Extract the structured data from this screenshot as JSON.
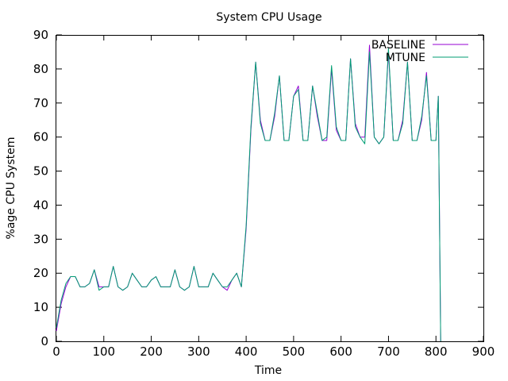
{
  "chart_data": {
    "type": "line",
    "title": "System CPU Usage",
    "xlabel": "Time",
    "ylabel": "%age CPU System",
    "xlim": [
      0,
      900
    ],
    "ylim": [
      0,
      90
    ],
    "xticks": [
      0,
      100,
      200,
      300,
      400,
      500,
      600,
      700,
      800,
      900
    ],
    "yticks": [
      0,
      10,
      20,
      30,
      40,
      50,
      60,
      70,
      80,
      90
    ],
    "grid": false,
    "legend_position": "top-right",
    "series": [
      {
        "name": "BASELINE",
        "color": "#9400d3",
        "x": [
          0,
          10,
          20,
          30,
          40,
          50,
          60,
          70,
          80,
          90,
          100,
          110,
          120,
          130,
          140,
          150,
          160,
          170,
          180,
          190,
          200,
          210,
          220,
          230,
          240,
          250,
          260,
          270,
          280,
          290,
          300,
          310,
          320,
          330,
          340,
          350,
          360,
          370,
          380,
          390,
          400,
          410,
          420,
          430,
          440,
          450,
          460,
          470,
          480,
          490,
          500,
          510,
          520,
          530,
          540,
          550,
          560,
          570,
          580,
          590,
          600,
          610,
          620,
          630,
          640,
          650,
          660,
          670,
          680,
          690,
          700,
          710,
          720,
          730,
          740,
          750,
          760,
          770,
          780,
          790,
          800,
          805,
          810
        ],
        "values": [
          3,
          11,
          16,
          19,
          19,
          16,
          16,
          17,
          21,
          16,
          16,
          16,
          22,
          16,
          15,
          16,
          20,
          18,
          16,
          16,
          18,
          19,
          16,
          16,
          16,
          21,
          16,
          15,
          16,
          22,
          16,
          16,
          16,
          20,
          18,
          16,
          15,
          18,
          20,
          16,
          33,
          62,
          82,
          65,
          59,
          59,
          66,
          78,
          59,
          59,
          72,
          75,
          59,
          59,
          75,
          66,
          59,
          59,
          80,
          62,
          59,
          59,
          83,
          64,
          60,
          60,
          87,
          60,
          58,
          60,
          85,
          59,
          59,
          65,
          82,
          59,
          59,
          65,
          79,
          59,
          59,
          72,
          0
        ]
      },
      {
        "name": "MTUNE",
        "color": "#009e73",
        "x": [
          0,
          10,
          20,
          30,
          40,
          50,
          60,
          70,
          80,
          90,
          100,
          110,
          120,
          130,
          140,
          150,
          160,
          170,
          180,
          190,
          200,
          210,
          220,
          230,
          240,
          250,
          260,
          270,
          280,
          290,
          300,
          310,
          320,
          330,
          340,
          350,
          360,
          370,
          380,
          390,
          400,
          410,
          420,
          430,
          440,
          450,
          460,
          470,
          480,
          490,
          500,
          510,
          520,
          530,
          540,
          550,
          560,
          570,
          580,
          590,
          600,
          610,
          620,
          630,
          640,
          650,
          660,
          670,
          680,
          690,
          700,
          710,
          720,
          730,
          740,
          750,
          760,
          770,
          780,
          790,
          800,
          805,
          810
        ],
        "values": [
          4,
          12,
          17,
          19,
          19,
          16,
          16,
          17,
          21,
          15,
          16,
          16,
          22,
          16,
          15,
          16,
          20,
          18,
          16,
          16,
          18,
          19,
          16,
          16,
          16,
          21,
          16,
          15,
          16,
          22,
          16,
          16,
          16,
          20,
          18,
          16,
          16,
          18,
          20,
          16,
          34,
          63,
          82,
          64,
          59,
          59,
          67,
          78,
          59,
          59,
          72,
          74,
          59,
          59,
          75,
          67,
          59,
          60,
          81,
          63,
          59,
          59,
          83,
          63,
          60,
          58,
          85,
          60,
          58,
          60,
          86,
          59,
          59,
          64,
          82,
          59,
          59,
          66,
          78,
          59,
          59,
          72,
          0
        ]
      }
    ]
  }
}
